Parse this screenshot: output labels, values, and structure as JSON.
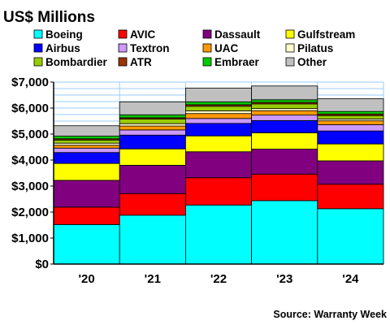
{
  "chart_data": {
    "type": "bar",
    "stacked": true,
    "title": "US$ Millions",
    "source": "Source: Warranty Week",
    "categories": [
      "'20",
      "'21",
      "'22",
      "'23",
      "'24"
    ],
    "ylim": [
      0,
      7000
    ],
    "yticks": [
      {
        "value": 0,
        "label": "$0"
      },
      {
        "value": 1000,
        "label": "$1,000"
      },
      {
        "value": 2000,
        "label": "$2,000"
      },
      {
        "value": 3000,
        "label": "$3,000"
      },
      {
        "value": 4000,
        "label": "$4,000"
      },
      {
        "value": 5000,
        "label": "$5,000"
      },
      {
        "value": 6000,
        "label": "$6,000"
      },
      {
        "value": 7000,
        "label": "$7,000"
      }
    ],
    "grid": true,
    "legend_position": "top",
    "series": [
      {
        "name": "Boeing",
        "color": "#00ffff",
        "values": [
          1520,
          1880,
          2270,
          2440,
          2130
        ]
      },
      {
        "name": "Airbus",
        "color": "#0000ff",
        "values": [
          420,
          530,
          480,
          470,
          500
        ]
      },
      {
        "name": "Bombardier",
        "color": "#99cc00",
        "values": [
          120,
          180,
          180,
          180,
          130
        ]
      },
      {
        "name": "AVIC",
        "color": "#ff0000",
        "values": [
          670,
          830,
          1050,
          1020,
          940
        ]
      },
      {
        "name": "Textron",
        "color": "#cc99ff",
        "values": [
          170,
          200,
          190,
          210,
          240
        ]
      },
      {
        "name": "ATR",
        "color": "#993300",
        "values": [
          50,
          50,
          60,
          60,
          60
        ]
      },
      {
        "name": "Dassault",
        "color": "#800080",
        "values": [
          1030,
          1090,
          1000,
          960,
          900
        ]
      },
      {
        "name": "UAC",
        "color": "#ff9900",
        "values": [
          110,
          150,
          190,
          170,
          150
        ]
      },
      {
        "name": "Embraer",
        "color": "#00cc00",
        "values": [
          100,
          110,
          110,
          100,
          100
        ]
      },
      {
        "name": "Gulfstream",
        "color": "#ffff00",
        "values": [
          650,
          630,
          610,
          630,
          650
        ]
      },
      {
        "name": "Pilatus",
        "color": "#ffffcc",
        "values": [
          80,
          90,
          100,
          80,
          70
        ]
      },
      {
        "name": "Other",
        "color": "#c0c0c0",
        "values": [
          400,
          500,
          530,
          530,
          490
        ]
      }
    ]
  },
  "legend": [
    [
      {
        "name": "Boeing",
        "color": "#00ffff"
      },
      {
        "name": "AVIC",
        "color": "#ff0000"
      },
      {
        "name": "Dassault",
        "color": "#800080"
      },
      {
        "name": "Gulfstream",
        "color": "#ffff00"
      }
    ],
    [
      {
        "name": "Airbus",
        "color": "#0000ff"
      },
      {
        "name": "Textron",
        "color": "#cc99ff"
      },
      {
        "name": "UAC",
        "color": "#ff9900"
      },
      {
        "name": "Pilatus",
        "color": "#ffffcc"
      }
    ],
    [
      {
        "name": "Bombardier",
        "color": "#99cc00"
      },
      {
        "name": "ATR",
        "color": "#993300"
      },
      {
        "name": "Embraer",
        "color": "#00cc00"
      },
      {
        "name": "Other",
        "color": "#c0c0c0"
      }
    ]
  ],
  "stack_order": [
    "Boeing",
    "AVIC",
    "Dassault",
    "Gulfstream",
    "Airbus",
    "Textron",
    "UAC",
    "Pilatus",
    "Bombardier",
    "ATR",
    "Embraer",
    "Other"
  ],
  "colors": {
    "plot_background": "#ffffff",
    "grid": "#99ccff",
    "bar_outline": "#000000"
  }
}
